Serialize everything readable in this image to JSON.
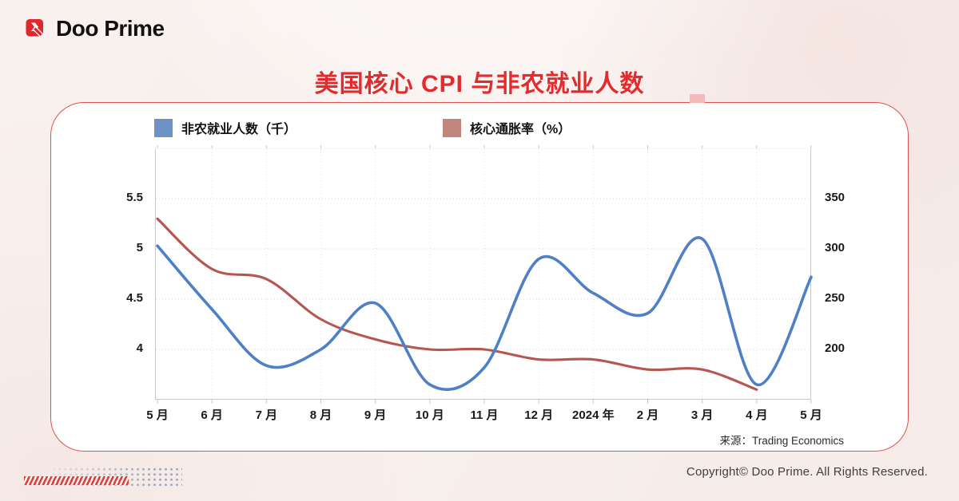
{
  "header": {
    "brand": "Doo Prime"
  },
  "title": "美国核心 CPI 与非农就业人数",
  "chart_data": {
    "type": "line",
    "categories": [
      "5 月",
      "6 月",
      "7 月",
      "8 月",
      "9 月",
      "10 月",
      "11 月",
      "12 月",
      "2024 年",
      "2 月",
      "3 月",
      "4 月",
      "5 月"
    ],
    "series": [
      {
        "name": "非农就业人数（千）",
        "axis": "right",
        "color": "#4f80c5",
        "legend_color": "#6d92c5",
        "values": [
          303,
          240,
          184,
          200,
          246,
          165,
          182,
          290,
          256,
          236,
          310,
          165,
          272
        ]
      },
      {
        "name": "核心通胀率（%）",
        "axis": "left",
        "color": "#b5574f",
        "legend_color": "#c2857b",
        "values": [
          5.3,
          4.8,
          4.7,
          4.3,
          4.1,
          4.0,
          4.0,
          3.9,
          3.9,
          3.8,
          3.8,
          3.6,
          null
        ]
      }
    ],
    "left_axis": {
      "ticks": [
        5.5,
        5,
        4.5,
        4
      ],
      "range": [
        3.5,
        6
      ]
    },
    "right_axis": {
      "ticks": [
        350,
        300,
        250,
        200
      ],
      "range": [
        150,
        400
      ]
    },
    "grid": true,
    "legend_position": "top"
  },
  "source": "来源：Trading Economics",
  "footer": {
    "copyright": "Copyright© Doo Prime. All Rights Reserved."
  }
}
